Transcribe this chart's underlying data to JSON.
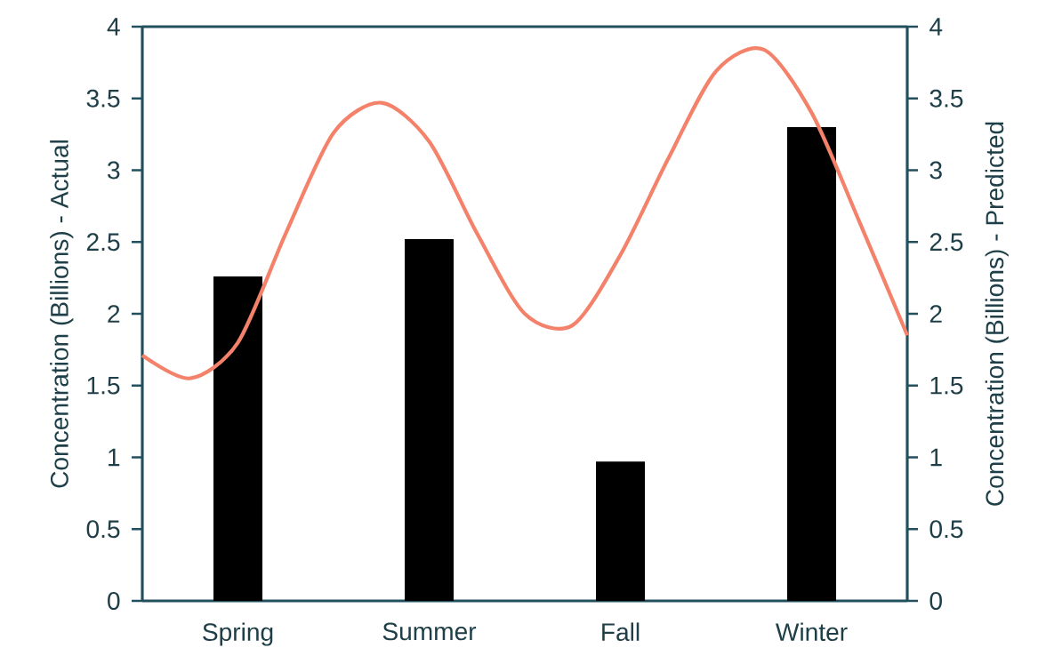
{
  "chart_data": {
    "type": "bar",
    "categories": [
      null,
      null,
      "Spring",
      null,
      null,
      null,
      "Summer",
      null,
      null,
      null,
      "Fall",
      null,
      null,
      null,
      "Winter",
      null,
      null
    ],
    "ylabel": "Concentration (Billions) - Actual",
    "y2label": "Concentration (Billions) - Predicted",
    "ylim": [
      0,
      4
    ],
    "yticks": [
      0,
      0.5,
      1,
      1.5,
      2,
      2.5,
      3,
      3.5,
      4
    ],
    "y2lim": [
      0,
      4
    ],
    "y2ticks": [
      0,
      0.5,
      1,
      1.5,
      2,
      2.5,
      3,
      3.5,
      4
    ],
    "series": [
      {
        "color": "#000000",
        "values": [
          null,
          null,
          2.26,
          null,
          null,
          null,
          2.52,
          null,
          null,
          null,
          0.97,
          null,
          null,
          null,
          3.3,
          null,
          null
        ]
      },
      {
        "type": "line",
        "axis": "y2",
        "color": "#f4826a",
        "marker": "none",
        "values": [
          1.71,
          1.55,
          1.8,
          2.56,
          3.26,
          3.47,
          3.2,
          2.56,
          2.0,
          1.92,
          2.41,
          3.08,
          3.69,
          3.84,
          3.4,
          2.64,
          1.85
        ]
      }
    ]
  }
}
